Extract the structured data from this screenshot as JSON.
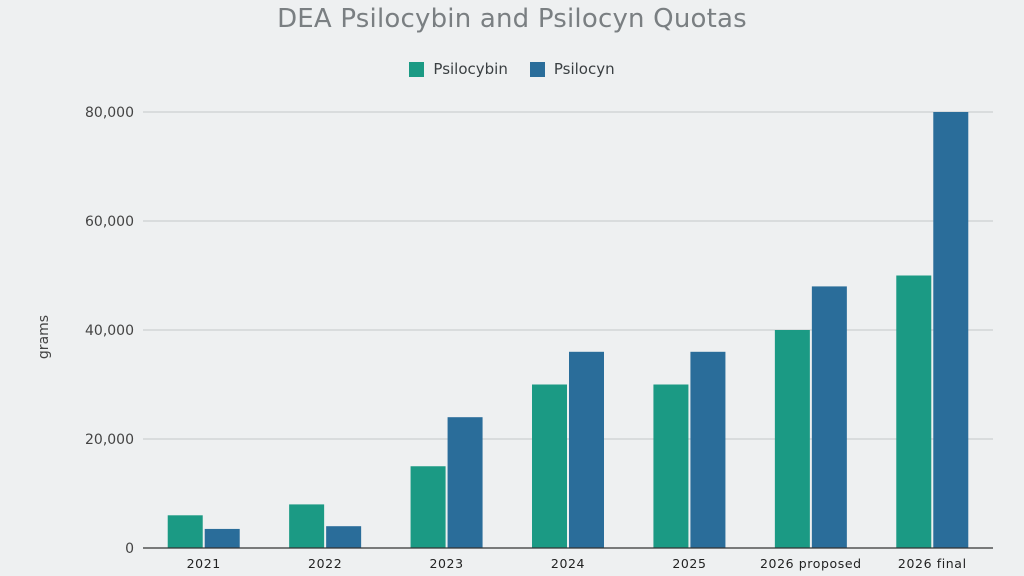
{
  "chart_data": {
    "type": "bar",
    "title": "DEA Psilocybin and Psilocyn Quotas",
    "xlabel": "",
    "ylabel": "grams",
    "categories": [
      "2021",
      "2022",
      "2023",
      "2024",
      "2025",
      "2026 proposed",
      "2026 final"
    ],
    "series": [
      {
        "name": "Psilocybin",
        "color": "#1b9a84",
        "values": [
          6000,
          8000,
          15000,
          30000,
          30000,
          40000,
          50000
        ]
      },
      {
        "name": "Psilocyn",
        "color": "#2a6d9a",
        "values": [
          3500,
          4000,
          24000,
          36000,
          36000,
          48000,
          80000
        ]
      }
    ],
    "ylim": [
      0,
      80000
    ],
    "yticks": [
      0,
      20000,
      40000,
      60000,
      80000
    ],
    "ytick_labels": [
      "0",
      "20,000",
      "40,000",
      "60,000",
      "80,000"
    ],
    "grid": true,
    "legend_position": "top-center"
  }
}
